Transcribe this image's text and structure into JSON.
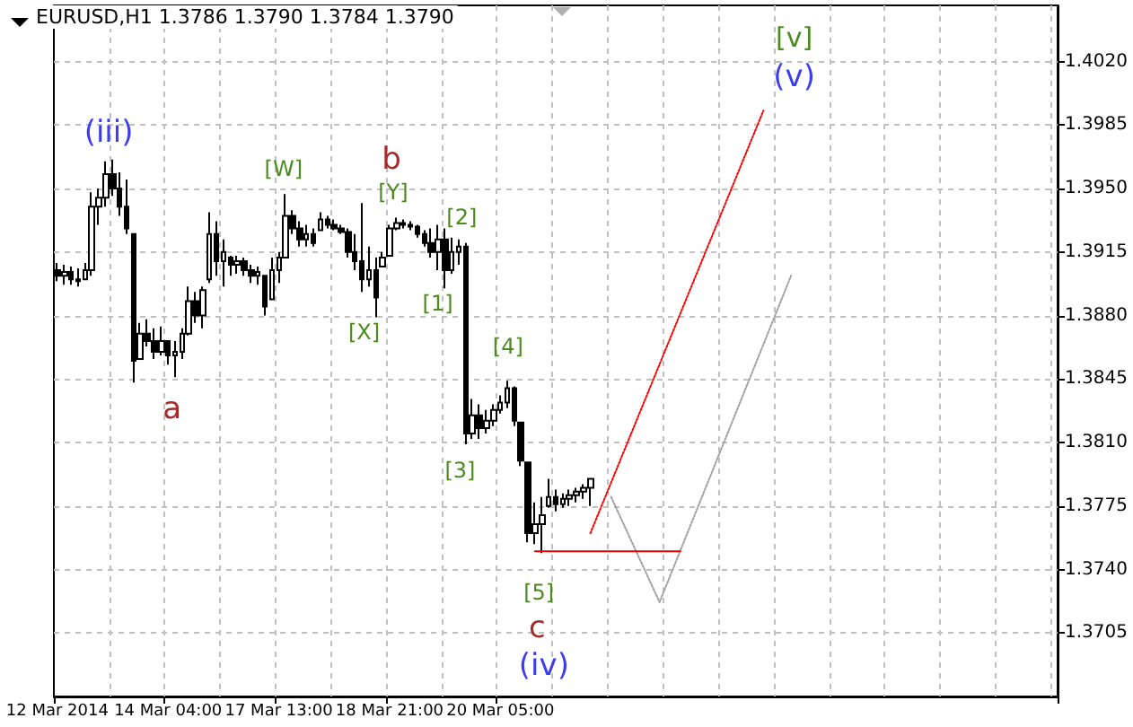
{
  "chart_data": {
    "type": "candlestick",
    "title": "EURUSD,H1 1.3786 1.3790 1.3784 1.3790",
    "color": "#000000",
    "grid": true,
    "categories": [
      "12 Mar 2014",
      null,
      null,
      null,
      null,
      null,
      null,
      null,
      null,
      null,
      null,
      null,
      null,
      null,
      null,
      null,
      "14 Mar 04:00",
      null,
      null,
      null,
      null,
      null,
      null,
      null,
      null,
      null,
      null,
      null,
      null,
      null,
      null,
      null,
      "17 Mar 13:00",
      null,
      null,
      null,
      null,
      null,
      null,
      null,
      null,
      null,
      null,
      null,
      null,
      null,
      null,
      null,
      "18 Mar 21:00",
      null,
      null,
      null,
      null,
      null,
      null,
      null,
      null,
      null,
      null,
      null,
      null,
      null,
      null,
      null,
      "20 Mar 05:00",
      null,
      null,
      null,
      null,
      null,
      null,
      null,
      null,
      null,
      null,
      null,
      null,
      null,
      null,
      null,
      null,
      null,
      null,
      null,
      null,
      null,
      null,
      null,
      null,
      null,
      null,
      null,
      null,
      null,
      null,
      null,
      null,
      null,
      null,
      null,
      null,
      null,
      null,
      null,
      null,
      null,
      null,
      null,
      null,
      null,
      null,
      null,
      null,
      null,
      null,
      null,
      null,
      null,
      null,
      null,
      null,
      null,
      null,
      null,
      null,
      null,
      null,
      null,
      null,
      null,
      null,
      null,
      null,
      null,
      null,
      null,
      null,
      null,
      null,
      null,
      null,
      null,
      null,
      null,
      null
    ],
    "ylim": [
      1.367,
      1.4051
    ],
    "yticks": [
      {
        "value": 1.3705,
        "label": "1.3705"
      },
      {
        "value": 1.374,
        "label": "1.3740"
      },
      {
        "value": 1.3775,
        "label": "1.3775"
      },
      {
        "value": 1.381,
        "label": "1.3810"
      },
      {
        "value": 1.3845,
        "label": "1.3845"
      },
      {
        "value": 1.388,
        "label": "1.3880"
      },
      {
        "value": 1.3915,
        "label": "1.3915"
      },
      {
        "value": 1.395,
        "label": "1.3950"
      },
      {
        "value": 1.3985,
        "label": "1.3985"
      },
      {
        "value": 1.402,
        "label": "1.4020"
      }
    ],
    "ohlc": [
      [
        1.3905,
        1.3909,
        1.3899,
        1.3902
      ],
      [
        1.3902,
        1.3908,
        1.3897,
        1.3904
      ],
      [
        1.3904,
        1.3907,
        1.3897,
        1.39
      ],
      [
        1.39,
        1.3906,
        1.3896,
        1.3899
      ],
      [
        1.39,
        1.3909,
        1.39,
        1.3905
      ],
      [
        1.3905,
        1.3948,
        1.3902,
        1.394
      ],
      [
        1.394,
        1.395,
        1.393,
        1.3945
      ],
      [
        1.3945,
        1.3965,
        1.394,
        1.3958
      ],
      [
        1.3958,
        1.3966,
        1.3946,
        1.395
      ],
      [
        1.395,
        1.3959,
        1.3935,
        1.394
      ],
      [
        1.394,
        1.3955,
        1.3925,
        1.3928
      ],
      [
        1.3925,
        1.3925,
        1.3843,
        1.3855
      ],
      [
        1.3856,
        1.3876,
        1.3856,
        1.387
      ],
      [
        1.387,
        1.3878,
        1.3863,
        1.3866
      ],
      [
        1.3866,
        1.3873,
        1.3856,
        1.386
      ],
      [
        1.386,
        1.3874,
        1.3858,
        1.3866
      ],
      [
        1.3866,
        1.3866,
        1.3853,
        1.3858
      ],
      [
        1.3858,
        1.3866,
        1.3846,
        1.386
      ],
      [
        1.386,
        1.3873,
        1.3856,
        1.387
      ],
      [
        1.387,
        1.3896,
        1.3869,
        1.3888
      ],
      [
        1.3888,
        1.3893,
        1.3876,
        1.388
      ],
      [
        1.388,
        1.3896,
        1.3873,
        1.3894
      ],
      [
        1.39,
        1.3937,
        1.3898,
        1.3925
      ],
      [
        1.3925,
        1.3932,
        1.3902,
        1.391
      ],
      [
        1.391,
        1.3922,
        1.3896,
        1.3915
      ],
      [
        1.3912,
        1.3913,
        1.3902,
        1.3908
      ],
      [
        1.3908,
        1.3913,
        1.3903,
        1.391
      ],
      [
        1.391,
        1.3912,
        1.3902,
        1.3905
      ],
      [
        1.3905,
        1.3908,
        1.3898,
        1.3902
      ],
      [
        1.3902,
        1.3907,
        1.3897,
        1.3904
      ],
      [
        1.3902,
        1.3902,
        1.388,
        1.3885
      ],
      [
        1.3889,
        1.3912,
        1.3889,
        1.3905
      ],
      [
        1.3905,
        1.3915,
        1.3898,
        1.3912
      ],
      [
        1.3912,
        1.3947,
        1.3912,
        1.3935
      ],
      [
        1.3935,
        1.3938,
        1.3925,
        1.3928
      ],
      [
        1.3928,
        1.3932,
        1.3918,
        1.3922
      ],
      [
        1.3922,
        1.393,
        1.3918,
        1.3925
      ],
      [
        1.3925,
        1.3928,
        1.3918,
        1.392
      ],
      [
        1.3927,
        1.3937,
        1.3927,
        1.3933
      ],
      [
        1.3933,
        1.3935,
        1.3928,
        1.393
      ],
      [
        1.393,
        1.3933,
        1.3927,
        1.3928
      ],
      [
        1.3928,
        1.393,
        1.3925,
        1.3926
      ],
      [
        1.3926,
        1.3928,
        1.3912,
        1.3915
      ],
      [
        1.3915,
        1.3925,
        1.3905,
        1.391
      ],
      [
        1.391,
        1.3942,
        1.3893,
        1.39
      ],
      [
        1.39,
        1.3918,
        1.3896,
        1.3905
      ],
      [
        1.3905,
        1.3912,
        1.3879,
        1.389
      ],
      [
        1.3907,
        1.3915,
        1.3907,
        1.3912
      ],
      [
        1.3913,
        1.393,
        1.3913,
        1.3928
      ],
      [
        1.3928,
        1.3934,
        1.3927,
        1.3931
      ],
      [
        1.3931,
        1.3933,
        1.3928,
        1.393
      ],
      [
        1.393,
        1.3932,
        1.3927,
        1.3929
      ],
      [
        1.3929,
        1.393,
        1.3923,
        1.3925
      ],
      [
        1.3925,
        1.3927,
        1.3918,
        1.392
      ],
      [
        1.392,
        1.3928,
        1.3912,
        1.3915
      ],
      [
        1.3915,
        1.393,
        1.3905,
        1.3922
      ],
      [
        1.3922,
        1.3928,
        1.3895,
        1.3905
      ],
      [
        1.3905,
        1.3923,
        1.3903,
        1.3915
      ],
      [
        1.3915,
        1.3922,
        1.3908,
        1.3918
      ],
      [
        1.3918,
        1.392,
        1.3809,
        1.3815
      ],
      [
        1.3815,
        1.3834,
        1.3812,
        1.3825
      ],
      [
        1.3825,
        1.3831,
        1.3812,
        1.3818
      ],
      [
        1.3818,
        1.3828,
        1.3815,
        1.3822
      ],
      [
        1.3822,
        1.3831,
        1.3819,
        1.3828
      ],
      [
        1.3828,
        1.3836,
        1.3826,
        1.3832
      ],
      [
        1.3832,
        1.3844,
        1.3829,
        1.384
      ],
      [
        1.384,
        1.3841,
        1.3819,
        1.3822
      ],
      [
        1.3821,
        1.3821,
        1.3797,
        1.38
      ],
      [
        1.3799,
        1.3799,
        1.3755,
        1.376
      ],
      [
        1.376,
        1.3777,
        1.3754,
        1.3765
      ],
      [
        1.3765,
        1.378,
        1.3749,
        1.377
      ],
      [
        1.3775,
        1.379,
        1.3774,
        1.378
      ],
      [
        1.378,
        1.3784,
        1.3772,
        1.3776
      ],
      [
        1.3776,
        1.3782,
        1.3774,
        1.3779
      ],
      [
        1.3779,
        1.3784,
        1.3775,
        1.3781
      ],
      [
        1.3781,
        1.3785,
        1.3777,
        1.3783
      ],
      [
        1.3783,
        1.3787,
        1.3779,
        1.3785
      ],
      [
        1.3785,
        1.379,
        1.3775,
        1.379
      ],
      null,
      null,
      null,
      null,
      null,
      null,
      null,
      null,
      null,
      null,
      null,
      null,
      null,
      null,
      null,
      null,
      null,
      null,
      null,
      null,
      null,
      null,
      null,
      null,
      null,
      null,
      null,
      null,
      null,
      null,
      null,
      null,
      null,
      null,
      null,
      null,
      null,
      null,
      null,
      null,
      null,
      null,
      null,
      null,
      null,
      null,
      null,
      null,
      null,
      null,
      null,
      null,
      null,
      null,
      null,
      null,
      null,
      null,
      null,
      null,
      null,
      null,
      null,
      null,
      null,
      null,
      null
    ],
    "series": [
      {
        "type": "line",
        "color": "#ff0000",
        "line_style": "dotted",
        "values": [
          null,
          null,
          null,
          null,
          null,
          null,
          null,
          null,
          null,
          null,
          null,
          null,
          null,
          null,
          null,
          null,
          null,
          null,
          null,
          null,
          null,
          null,
          null,
          null,
          null,
          null,
          null,
          null,
          null,
          null,
          null,
          null,
          null,
          null,
          null,
          null,
          null,
          null,
          null,
          null,
          null,
          null,
          null,
          null,
          null,
          null,
          null,
          null,
          null,
          null,
          null,
          null,
          null,
          null,
          null,
          null,
          null,
          null,
          null,
          null,
          null,
          null,
          null,
          null,
          null,
          null,
          null,
          null,
          null,
          null,
          null,
          null,
          null,
          null,
          null,
          null,
          null,
          1.376,
          null,
          null,
          null,
          null,
          null,
          null,
          null,
          null,
          null,
          null,
          null,
          null,
          null,
          null,
          null,
          null,
          null,
          null,
          null,
          null,
          null,
          null,
          null,
          null,
          1.3993,
          null,
          null,
          null,
          null,
          null,
          null,
          null,
          null,
          null,
          null,
          null,
          null,
          null,
          null,
          null,
          null,
          null,
          null,
          null,
          null,
          null,
          null,
          null,
          null,
          null,
          null,
          null,
          null,
          null,
          null,
          null,
          null,
          null,
          null,
          null,
          null,
          null,
          null,
          null,
          null,
          null,
          null
        ]
      },
      {
        "type": "line",
        "color": "#a0a0a0",
        "line_style": "dotted",
        "values": [
          null,
          null,
          null,
          null,
          null,
          null,
          null,
          null,
          null,
          null,
          null,
          null,
          null,
          null,
          null,
          null,
          null,
          null,
          null,
          null,
          null,
          null,
          null,
          null,
          null,
          null,
          null,
          null,
          null,
          null,
          null,
          null,
          null,
          null,
          null,
          null,
          null,
          null,
          null,
          null,
          null,
          null,
          null,
          null,
          null,
          null,
          null,
          null,
          null,
          null,
          null,
          null,
          null,
          null,
          null,
          null,
          null,
          null,
          null,
          null,
          null,
          null,
          null,
          null,
          null,
          null,
          null,
          null,
          null,
          null,
          null,
          null,
          null,
          null,
          null,
          null,
          null,
          null,
          null,
          null,
          1.378,
          null,
          null,
          null,
          null,
          null,
          null,
          1.3722,
          null,
          null,
          null,
          null,
          null,
          null,
          null,
          null,
          null,
          null,
          null,
          null,
          null,
          null,
          null,
          null,
          null,
          null,
          1.3902,
          null,
          null,
          null,
          null,
          null,
          null,
          null,
          null,
          null,
          null,
          null,
          null,
          null,
          null,
          null,
          null,
          null,
          null,
          null,
          null,
          null,
          null,
          null,
          null,
          null,
          null,
          null,
          null,
          null,
          null,
          null,
          null,
          null,
          null,
          null,
          null,
          null,
          null
        ]
      },
      {
        "type": "line",
        "color": "#e00000",
        "line_style": "solid",
        "values": [
          null,
          null,
          null,
          null,
          null,
          null,
          null,
          null,
          null,
          null,
          null,
          null,
          null,
          null,
          null,
          null,
          null,
          null,
          null,
          null,
          null,
          null,
          null,
          null,
          null,
          null,
          null,
          null,
          null,
          null,
          null,
          null,
          null,
          null,
          null,
          null,
          null,
          null,
          null,
          null,
          null,
          null,
          null,
          null,
          null,
          null,
          null,
          null,
          null,
          null,
          null,
          null,
          null,
          null,
          null,
          null,
          null,
          null,
          null,
          null,
          null,
          null,
          null,
          null,
          null,
          null,
          null,
          null,
          null,
          1.375,
          null,
          null,
          null,
          null,
          null,
          null,
          null,
          null,
          null,
          null,
          null,
          null,
          null,
          null,
          null,
          null,
          null,
          null,
          null,
          null,
          1.375,
          null,
          null,
          null,
          null,
          null,
          null,
          null,
          null,
          null,
          null,
          null,
          null,
          null,
          null,
          null,
          null,
          null,
          null,
          null,
          null,
          null,
          null,
          null,
          null,
          null,
          null,
          null,
          null,
          null,
          null,
          null,
          null,
          null,
          null,
          null,
          null,
          null,
          null,
          null,
          null,
          null,
          null,
          null,
          null,
          null,
          null,
          null,
          null,
          null,
          null,
          null,
          null,
          null,
          null
        ]
      }
    ],
    "annotations": [
      "(iii)",
      "a",
      "[W]",
      "[X]",
      "[Y]",
      "b",
      "[1]",
      "[2]",
      "[3]",
      "[4]",
      "[5]",
      "c",
      "(iv)",
      "(v)",
      "[v]"
    ]
  }
}
